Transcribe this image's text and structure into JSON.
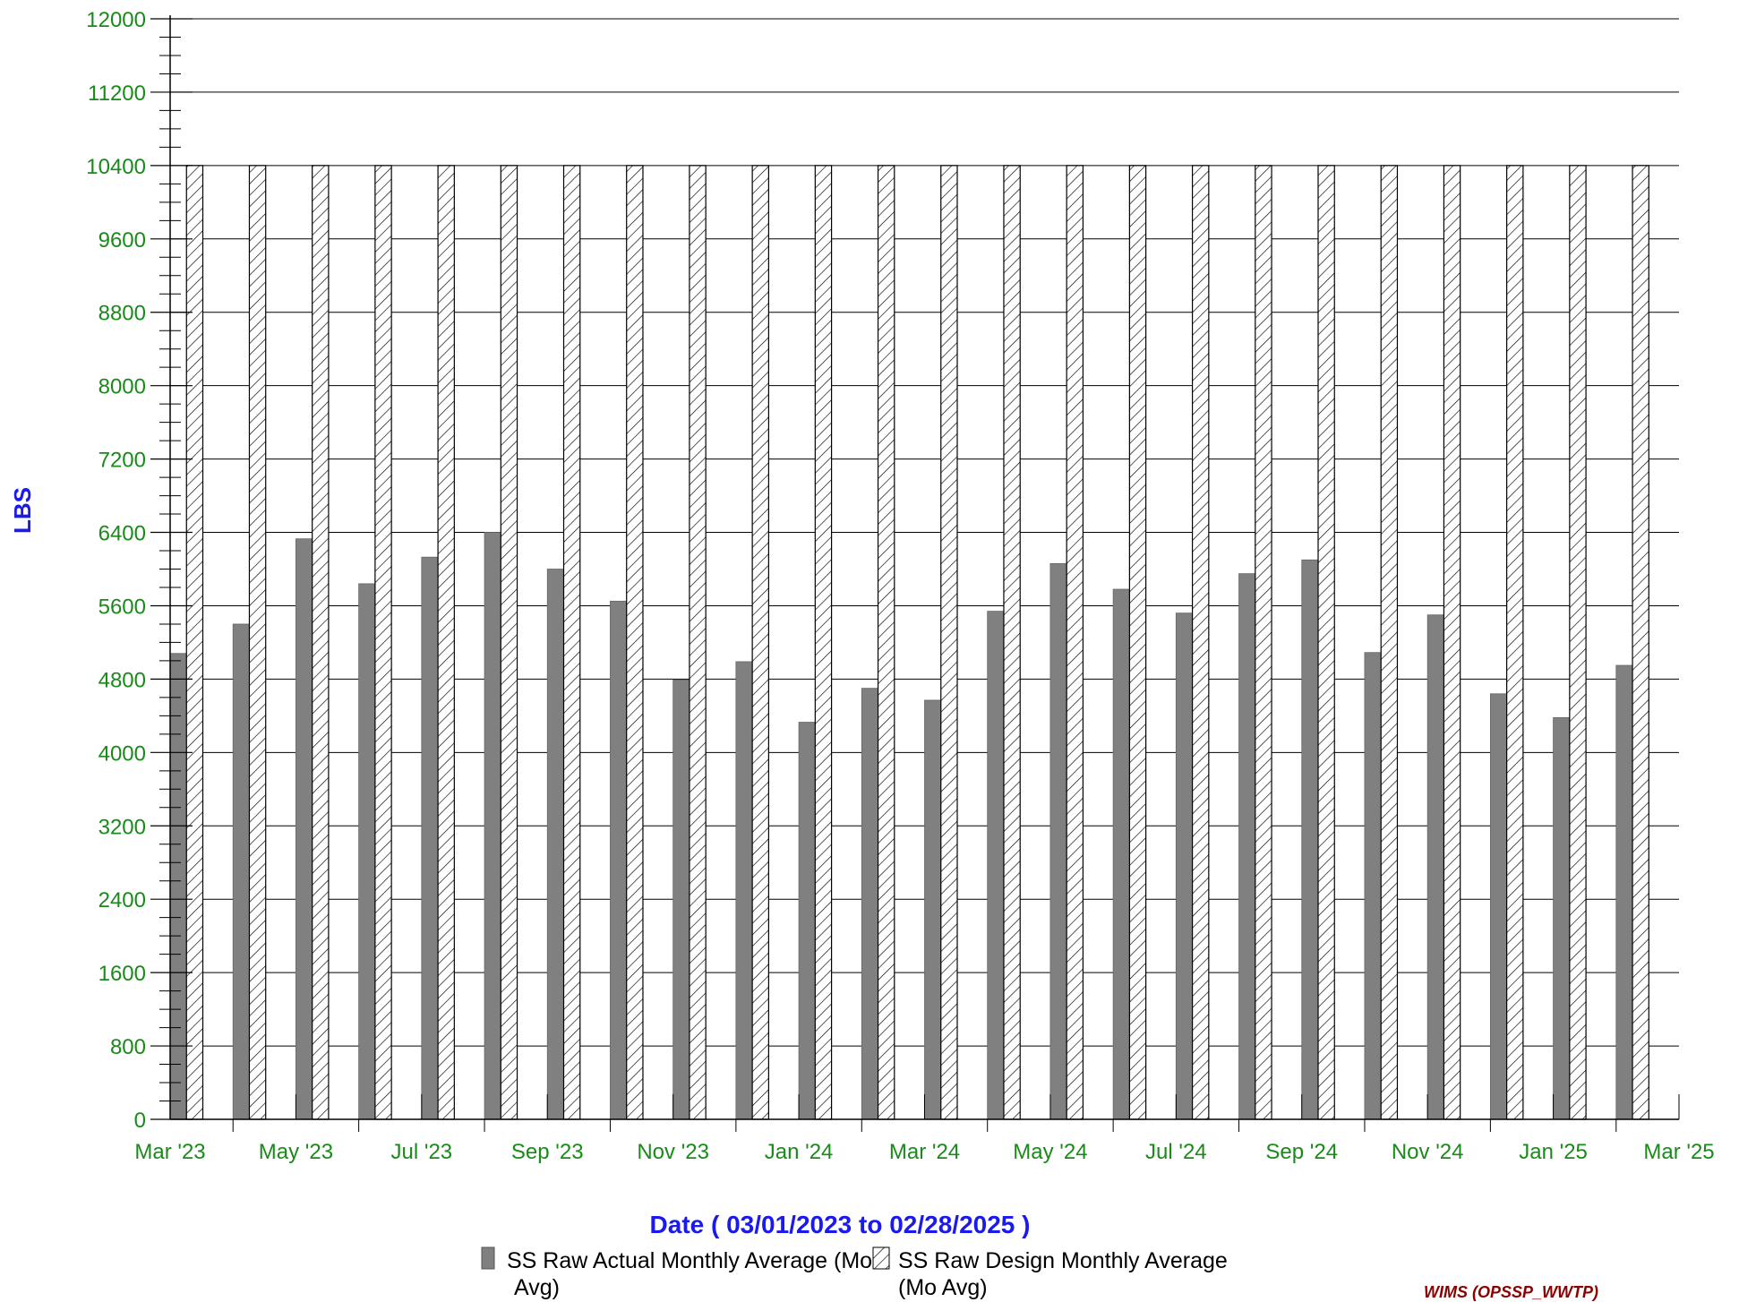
{
  "chart_data": {
    "type": "bar",
    "title": "",
    "xlabel": "Date  ( 03/01/2023  to  02/28/2025 )",
    "ylabel": "LBS",
    "ylim": [
      0,
      12000
    ],
    "y_ticks": [
      0,
      800,
      1600,
      2400,
      3200,
      4000,
      4800,
      5600,
      6400,
      7200,
      8000,
      8800,
      9600,
      10400,
      11200,
      12000
    ],
    "x_tick_labels": [
      "Mar '23",
      "May '23",
      "Jul '23",
      "Sep '23",
      "Nov '23",
      "Jan '24",
      "Mar '24",
      "May '24",
      "Jul '24",
      "Sep '24",
      "Nov '24",
      "Jan '25",
      "Mar '25"
    ],
    "categories": [
      "2023-03",
      "2023-04",
      "2023-05",
      "2023-06",
      "2023-07",
      "2023-08",
      "2023-09",
      "2023-10",
      "2023-11",
      "2023-12",
      "2024-01",
      "2024-02",
      "2024-03",
      "2024-04",
      "2024-05",
      "2024-06",
      "2024-07",
      "2024-08",
      "2024-09",
      "2024-10",
      "2024-11",
      "2024-12",
      "2025-01",
      "2025-02"
    ],
    "grid": true,
    "legend_position": "bottom",
    "series": [
      {
        "name": "SS Raw Actual Monthly Average (Mo  Avg)",
        "style": "solid",
        "color": "#808080",
        "values": [
          5080,
          5400,
          6330,
          5840,
          6130,
          6400,
          6000,
          5650,
          4790,
          4990,
          4330,
          4700,
          4570,
          5540,
          6060,
          5780,
          5520,
          5950,
          6100,
          5090,
          5500,
          4640,
          4380,
          4950
        ]
      },
      {
        "name": "SS Raw Design Monthly Average (Mo  Avg)",
        "style": "hatched",
        "color": "#ffffff",
        "values": [
          10400,
          10400,
          10400,
          10400,
          10400,
          10400,
          10400,
          10400,
          10400,
          10400,
          10400,
          10400,
          10400,
          10400,
          10400,
          10400,
          10400,
          10400,
          10400,
          10400,
          10400,
          10400,
          10400,
          10400
        ]
      }
    ],
    "legend": {
      "item1_line1": "SS Raw Actual Monthly Average (Mo",
      "item1_line2": "Avg)",
      "item2_line1": "SS Raw Design Monthly Average",
      "item2_line2": "(Mo  Avg)"
    },
    "footer": "WIMS (OPSSP_WWTP)"
  }
}
